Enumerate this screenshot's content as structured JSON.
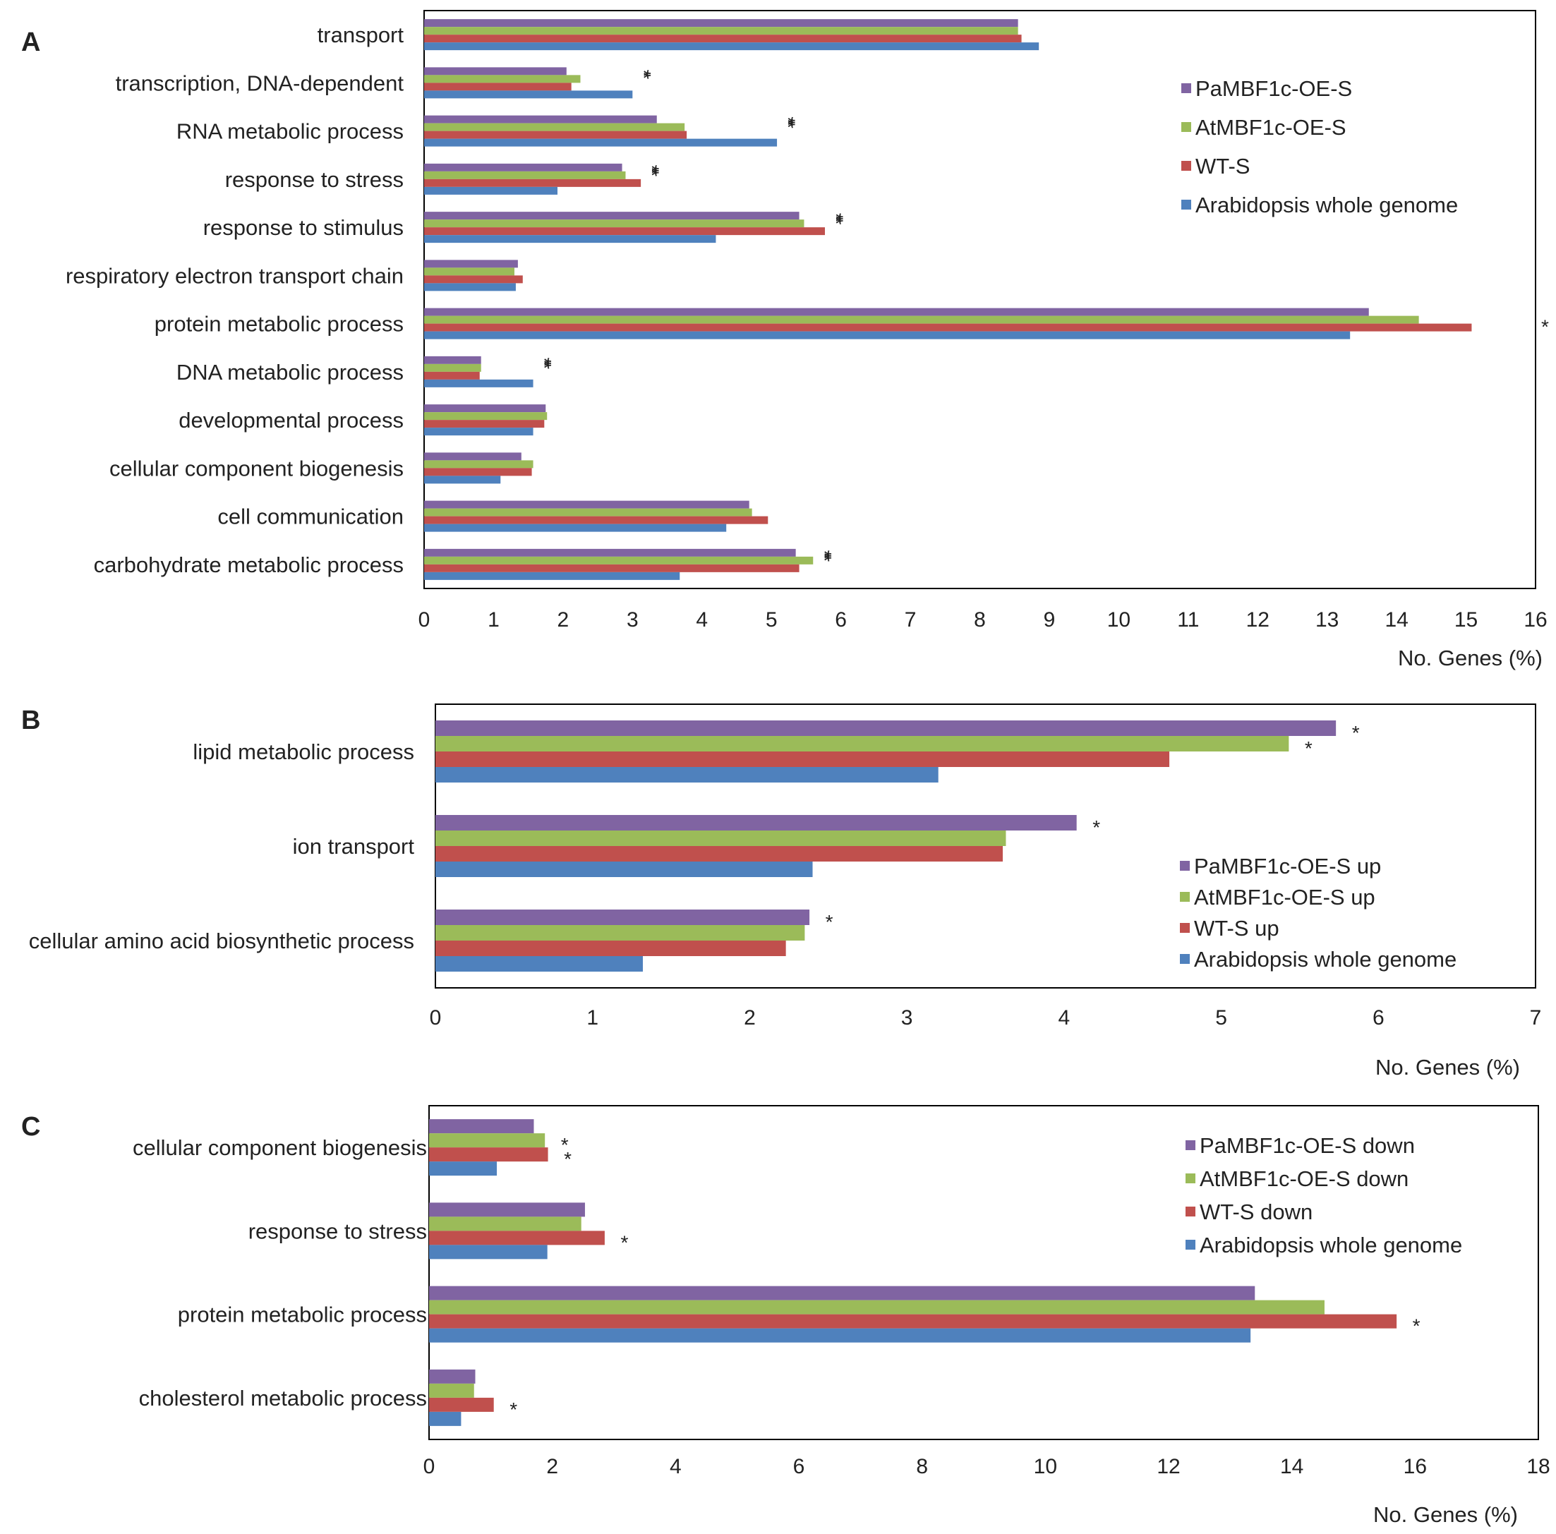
{
  "colors": {
    "purple": "#8064a2",
    "green": "#9bbb59",
    "red": "#c0504d",
    "blue": "#4f81bd",
    "frame": "#000000"
  },
  "chart_data": [
    {
      "panel": "A",
      "type": "bar",
      "orientation": "horizontal",
      "xlabel": "No. Genes (%)",
      "xlim": [
        0,
        16
      ],
      "xticks": [
        0,
        1,
        2,
        3,
        4,
        5,
        6,
        7,
        8,
        9,
        10,
        11,
        12,
        13,
        14,
        15,
        16
      ],
      "legend_position": "top-right",
      "categories": [
        "transport",
        "transcription, DNA-dependent",
        "RNA metabolic process",
        "response to stress",
        "response to stimulus",
        "respiratory electron transport chain",
        "protein metabolic process",
        "DNA metabolic process",
        "developmental process",
        "cellular component biogenesis",
        "cell communication",
        "carbohydrate metabolic process"
      ],
      "series": [
        {
          "name": "PaMBF1c-OE-S",
          "color_key": "purple",
          "values": [
            8.55,
            2.05,
            3.35,
            2.85,
            5.4,
            1.35,
            13.6,
            0.82,
            1.75,
            1.4,
            4.68,
            5.35
          ]
        },
        {
          "name": "AtMBF1c-OE-S",
          "color_key": "green",
          "values": [
            8.55,
            2.25,
            3.75,
            2.9,
            5.47,
            1.3,
            14.32,
            0.82,
            1.77,
            1.57,
            4.72,
            5.6
          ]
        },
        {
          "name": "WT-S",
          "color_key": "red",
          "values": [
            8.6,
            2.12,
            3.78,
            3.12,
            5.77,
            1.42,
            15.08,
            0.8,
            1.73,
            1.55,
            4.95,
            5.4
          ]
        },
        {
          "name": "Arabidopsis whole genome",
          "color_key": "blue",
          "values": [
            8.85,
            3.0,
            5.08,
            1.92,
            4.2,
            1.32,
            13.33,
            1.57,
            1.57,
            1.1,
            4.35,
            3.68
          ]
        }
      ],
      "significance": [
        "",
        "**",
        "***",
        "***",
        "***",
        "",
        "*",
        "***",
        "",
        "",
        "",
        "***"
      ]
    },
    {
      "panel": "B",
      "type": "bar",
      "orientation": "horizontal",
      "xlabel": "No. Genes (%)",
      "xlim": [
        0,
        7
      ],
      "xticks": [
        0,
        1,
        2,
        3,
        4,
        5,
        6,
        7
      ],
      "legend_position": "bottom-right",
      "categories": [
        "lipid metabolic process",
        "ion transport",
        "cellular amino acid biosynthetic process"
      ],
      "series": [
        {
          "name": "PaMBF1c-OE-S up",
          "color_key": "purple",
          "values": [
            5.73,
            4.08,
            2.38
          ],
          "sig": [
            "*",
            "*",
            "*"
          ]
        },
        {
          "name": "AtMBF1c-OE-S up",
          "color_key": "green",
          "values": [
            5.43,
            3.63,
            2.35
          ],
          "sig": [
            "*",
            "",
            ""
          ]
        },
        {
          "name": "WT-S up",
          "color_key": "red",
          "values": [
            4.67,
            3.61,
            2.23
          ],
          "sig": [
            "",
            "",
            ""
          ]
        },
        {
          "name": "Arabidopsis whole genome",
          "color_key": "blue",
          "values": [
            3.2,
            2.4,
            1.32
          ],
          "sig": [
            "",
            "",
            ""
          ]
        }
      ]
    },
    {
      "panel": "C",
      "type": "bar",
      "orientation": "horizontal",
      "xlabel": "No. Genes (%)",
      "xlim": [
        0,
        18
      ],
      "xticks": [
        0,
        2,
        4,
        6,
        8,
        10,
        12,
        14,
        16,
        18
      ],
      "legend_position": "top-right",
      "categories": [
        "cellular component biogenesis",
        "response to stress",
        "protein metabolic process",
        "cholesterol metabolic process"
      ],
      "series": [
        {
          "name": "PaMBF1c-OE-S down",
          "color_key": "purple",
          "values": [
            1.7,
            2.53,
            13.4,
            0.75
          ],
          "sig": [
            "",
            "",
            "",
            ""
          ]
        },
        {
          "name": "AtMBF1c-OE-S down",
          "color_key": "green",
          "values": [
            1.88,
            2.47,
            14.53,
            0.73
          ],
          "sig": [
            "*",
            "",
            "",
            ""
          ]
        },
        {
          "name": "WT-S down",
          "color_key": "red",
          "values": [
            1.93,
            2.85,
            15.7,
            1.05
          ],
          "sig": [
            "*",
            "*",
            "*",
            "*"
          ]
        },
        {
          "name": "Arabidopsis whole genome",
          "color_key": "blue",
          "values": [
            1.1,
            1.92,
            13.33,
            0.52
          ],
          "sig": [
            "",
            "",
            "",
            ""
          ]
        }
      ]
    }
  ]
}
